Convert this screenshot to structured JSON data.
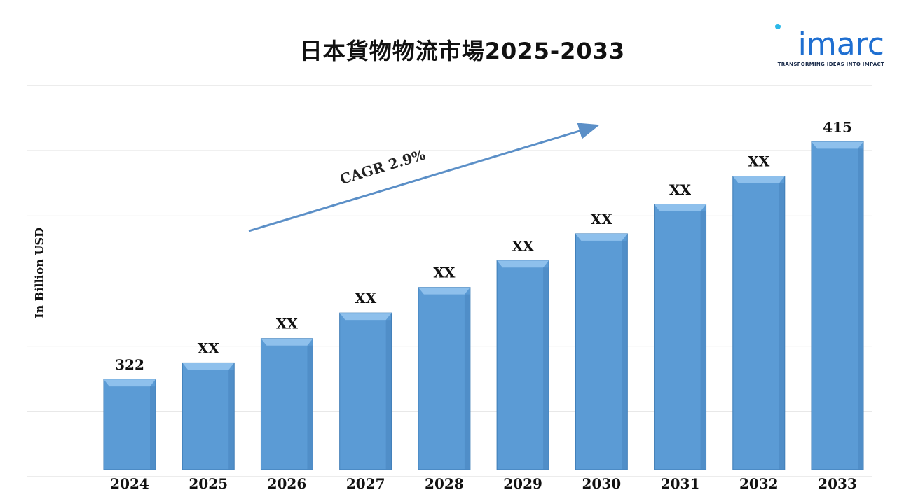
{
  "title": "日本貨物物流市場2025-2033",
  "logo": {
    "wordmark": "imarc",
    "tagline": "TRANSFORMING IDEAS INTO IMPACT"
  },
  "annotation": {
    "cagr_text": "CAGR 2.9%"
  },
  "colors": {
    "bar": "#5b9bd5",
    "bar_top": "#8ec0ec",
    "bar_edge": "#3d7bb5",
    "arrow": "#5b8fc7",
    "grid": "#d9d9d9"
  },
  "chart_data": {
    "type": "bar",
    "title": "日本貨物物流市場2025-2033",
    "xlabel": "",
    "ylabel": "In Billion USD",
    "categories": [
      "2024",
      "2025",
      "2026",
      "2027",
      "2028",
      "2029",
      "2030",
      "2031",
      "2032",
      "2033"
    ],
    "values": [
      322,
      328.5,
      338.0,
      348.0,
      358.0,
      368.5,
      379.0,
      390.5,
      401.5,
      415
    ],
    "data_labels": [
      "322",
      "XX",
      "XX",
      "XX",
      "XX",
      "XX",
      "XX",
      "XX",
      "XX",
      "415"
    ],
    "ylim": [
      284,
      437
    ],
    "grid": true,
    "legend": "none"
  }
}
